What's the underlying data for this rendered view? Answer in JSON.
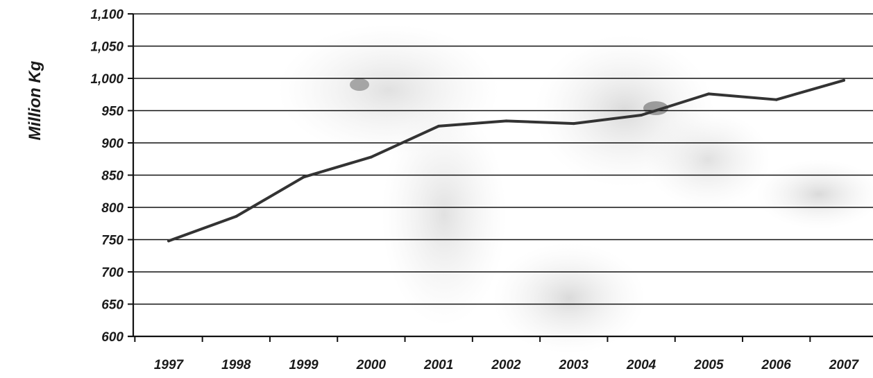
{
  "chart_data": {
    "type": "line",
    "title": "",
    "xlabel": "",
    "ylabel": "Million Kg",
    "categories": [
      "1997",
      "1998",
      "1999",
      "2000",
      "2001",
      "2002",
      "2003",
      "2004",
      "2005",
      "2006",
      "2007"
    ],
    "series": [
      {
        "values": [
          748,
          786,
          847,
          878,
          926,
          934,
          930,
          943,
          976,
          967,
          997
        ]
      }
    ],
    "ylim": [
      600,
      1100
    ],
    "yticks": [
      "600",
      "650",
      "700",
      "750",
      "800",
      "850",
      "900",
      "950",
      "1,000",
      "1,050",
      "1,100"
    ],
    "ytick_values": [
      600,
      650,
      700,
      750,
      800,
      850,
      900,
      950,
      1000,
      1050,
      1100
    ],
    "grid": true,
    "legend": "none",
    "line_color": "#333333",
    "background_image": "faded-horses-watermark"
  }
}
